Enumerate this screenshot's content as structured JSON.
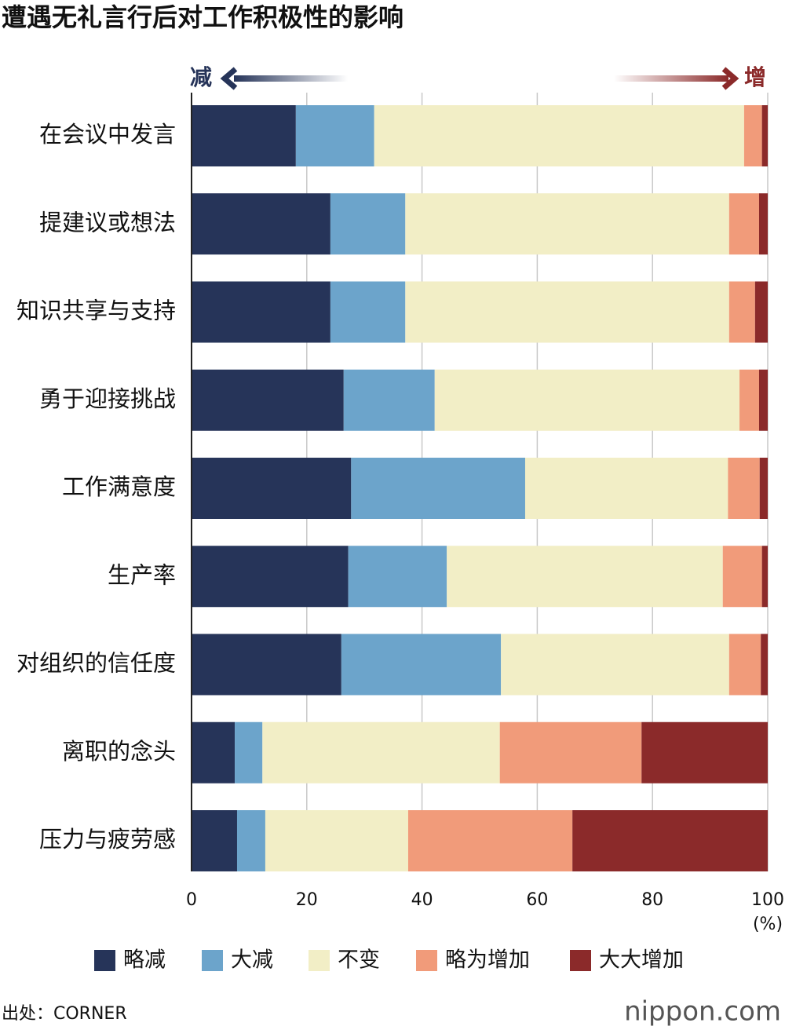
{
  "chart_data": {
    "type": "bar",
    "orientation": "horizontal",
    "stacked": true,
    "title": "遭遇无礼言行后对工作积极性的影响",
    "annotations": {
      "decrease": "减",
      "increase": "增"
    },
    "xlabel": "(%)",
    "source": "出处：CORNER",
    "logo": "nippon.com",
    "categories": [
      "在会议中发言",
      "提建议或想法",
      "知识共享与支持",
      "勇于迎接挑战",
      "工作满意度",
      "生产率",
      "对组织的信任度",
      "离职的念头",
      "压力与疲劳感"
    ],
    "series": [
      {
        "name": "略减",
        "color": "#263459",
        "values": [
          18.1,
          24.1,
          24.1,
          26.4,
          27.7,
          27.2,
          26.0,
          7.5,
          7.9
        ]
      },
      {
        "name": "大减",
        "color": "#6ca4cb",
        "values": [
          13.6,
          13.0,
          13.0,
          15.8,
          30.2,
          17.1,
          27.7,
          4.8,
          4.9
        ]
      },
      {
        "name": "不变",
        "color": "#f2eec6",
        "values": [
          64.2,
          56.2,
          56.2,
          52.9,
          35.2,
          47.9,
          39.6,
          41.2,
          24.8
        ]
      },
      {
        "name": "略为增加",
        "color": "#f19b7a",
        "values": [
          3.1,
          5.2,
          4.5,
          3.4,
          5.5,
          6.8,
          5.5,
          24.6,
          28.5
        ]
      },
      {
        "name": "大大增加",
        "color": "#8b2a2a",
        "values": [
          1.0,
          1.5,
          2.2,
          1.5,
          1.4,
          1.0,
          1.2,
          21.9,
          33.9
        ]
      }
    ],
    "xlim": [
      0,
      100
    ],
    "xticks": [
      0,
      20,
      40,
      60,
      80,
      100
    ],
    "grid": true,
    "legend": "bottom"
  }
}
